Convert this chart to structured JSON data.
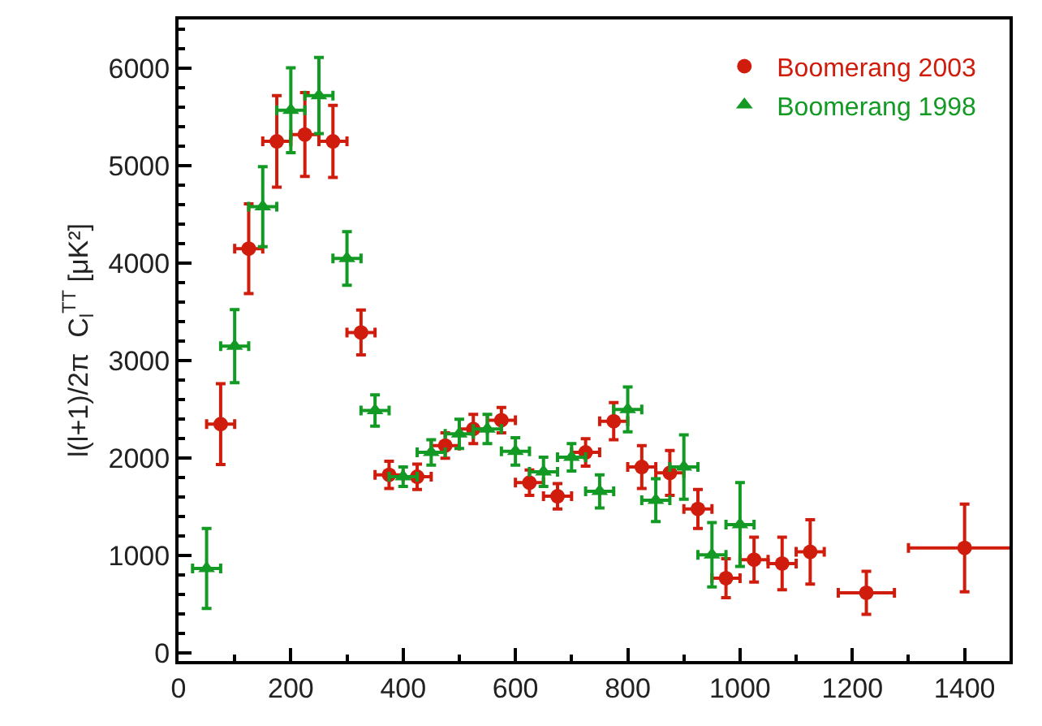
{
  "chart_data": {
    "type": "scatter",
    "ylabel": "l(l+1)/2π  C$_{l}$$^{TT}$ [μK²]",
    "xlim": [
      0,
      1480
    ],
    "ylim": [
      -80,
      6500
    ],
    "xticks": [
      0,
      200,
      400,
      600,
      800,
      1000,
      1200,
      1400
    ],
    "yticks": [
      0,
      1000,
      2000,
      3000,
      4000,
      5000,
      6000
    ],
    "legend": "top right",
    "series": [
      {
        "name": "Boomerang 2003",
        "color": "#d01c0c",
        "marker": "circle",
        "x": [
          75,
          125,
          175,
          225,
          275,
          325,
          375,
          425,
          475,
          525,
          575,
          625,
          675,
          725,
          775,
          825,
          875,
          925,
          975,
          1025,
          1075,
          1125,
          1225,
          1400
        ],
        "values": [
          2350,
          4150,
          5250,
          5320,
          5250,
          3290,
          1830,
          1810,
          2130,
          2300,
          2390,
          1750,
          1610,
          2060,
          2380,
          1910,
          1850,
          1480,
          770,
          960,
          920,
          1040,
          620,
          1080
        ],
        "errors": [
          415,
          460,
          470,
          430,
          370,
          230,
          140,
          130,
          130,
          150,
          130,
          130,
          130,
          140,
          190,
          220,
          230,
          200,
          200,
          230,
          270,
          330,
          220,
          450
        ],
        "xerrors": [
          25,
          25,
          25,
          25,
          25,
          25,
          25,
          25,
          25,
          25,
          25,
          25,
          25,
          25,
          25,
          25,
          25,
          25,
          25,
          25,
          25,
          25,
          50,
          100
        ]
      },
      {
        "name": "Boomerang 1998",
        "color": "#139a24",
        "marker": "triangle",
        "x": [
          50,
          100,
          150,
          200,
          250,
          300,
          350,
          400,
          450,
          500,
          550,
          600,
          650,
          700,
          750,
          800,
          850,
          900,
          950,
          1000
        ],
        "values": [
          870,
          3150,
          4580,
          5570,
          5720,
          4050,
          2490,
          1810,
          2060,
          2250,
          2300,
          2070,
          1860,
          2010,
          1660,
          2500,
          1570,
          1910,
          1010,
          1320
        ],
        "errors": [
          410,
          375,
          410,
          435,
          390,
          275,
          160,
          100,
          130,
          150,
          150,
          140,
          150,
          140,
          170,
          230,
          220,
          330,
          330,
          430
        ],
        "xerrors": [
          25,
          25,
          25,
          25,
          25,
          25,
          25,
          25,
          25,
          25,
          25,
          25,
          25,
          25,
          25,
          25,
          25,
          25,
          25,
          25
        ]
      }
    ]
  }
}
